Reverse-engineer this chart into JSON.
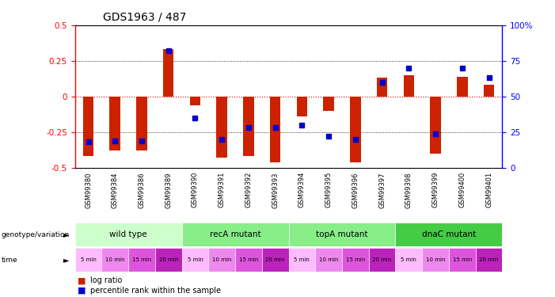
{
  "title": "GDS1963 / 487",
  "samples": [
    "GSM99380",
    "GSM99384",
    "GSM99386",
    "GSM99389",
    "GSM99390",
    "GSM99391",
    "GSM99392",
    "GSM99393",
    "GSM99394",
    "GSM99395",
    "GSM99396",
    "GSM99397",
    "GSM99398",
    "GSM99399",
    "GSM99400",
    "GSM99401"
  ],
  "log_ratio": [
    -0.42,
    -0.38,
    -0.38,
    0.33,
    -0.06,
    -0.43,
    -0.42,
    -0.46,
    -0.14,
    -0.1,
    -0.46,
    0.13,
    0.15,
    -0.4,
    0.14,
    0.08
  ],
  "percentile_rank": [
    18,
    19,
    19,
    82,
    35,
    20,
    28,
    28,
    30,
    22,
    20,
    60,
    70,
    24,
    70,
    63
  ],
  "groups": [
    {
      "label": "wild type",
      "start": 0,
      "end": 4,
      "color": "#ccffcc"
    },
    {
      "label": "recA mutant",
      "start": 4,
      "end": 8,
      "color": "#88ee88"
    },
    {
      "label": "topA mutant",
      "start": 8,
      "end": 12,
      "color": "#88ee88"
    },
    {
      "label": "dnaC mutant",
      "start": 12,
      "end": 16,
      "color": "#44cc44"
    }
  ],
  "time_labels": [
    "5 min",
    "10 min",
    "15 min",
    "20 min",
    "5 min",
    "10 min",
    "15 min",
    "20 min",
    "5 min",
    "10 min",
    "15 min",
    "20 min",
    "5 min",
    "10 min",
    "15 min",
    "20 min"
  ],
  "ylim_left": [
    -0.5,
    0.5
  ],
  "ylim_right": [
    0,
    100
  ],
  "bar_color": "#cc2200",
  "dot_color": "#0000cc",
  "zero_line_color": "#cc0000",
  "bg_color": "#ffffff",
  "time_cycle_colors": [
    "#ffbbff",
    "#ee88ee",
    "#dd55dd",
    "#bb22bb"
  ]
}
